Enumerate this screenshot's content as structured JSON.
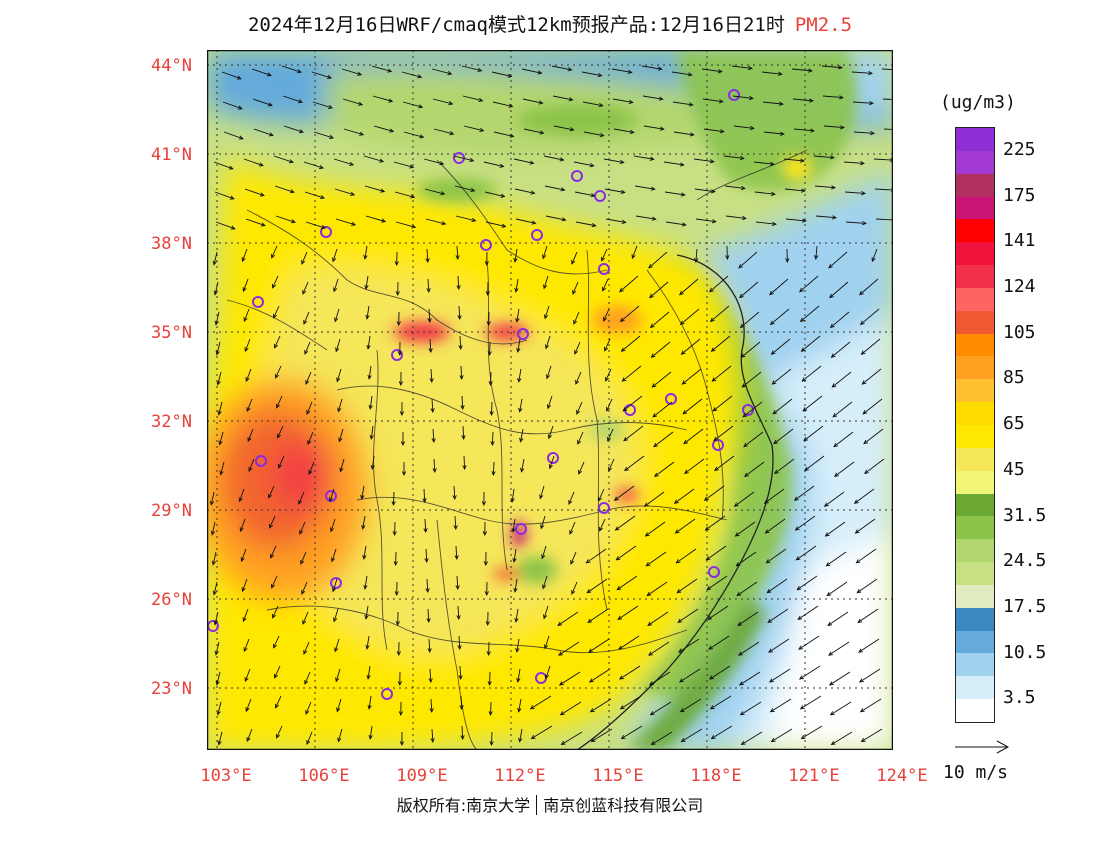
{
  "header": {
    "title": "2024年12月16日WRF/cmaq模式12km预报产品:12月16日21时",
    "pollutant": "PM2.5"
  },
  "map": {
    "lat_labels": [
      "44°N",
      "41°N",
      "38°N",
      "35°N",
      "32°N",
      "29°N",
      "26°N",
      "23°N"
    ],
    "lon_labels": [
      "103°E",
      "106°E",
      "109°E",
      "112°E",
      "115°E",
      "118°E",
      "121°E",
      "124°E"
    ],
    "colors": {
      "label": "#e8413a",
      "station_marker": "#8a2be2",
      "grid": "#333333"
    }
  },
  "legend": {
    "unit": "(ug/m3)",
    "levels": [
      {
        "label": "225",
        "color": "#8f2fd6"
      },
      {
        "label": "",
        "color": "#a33bd2"
      },
      {
        "label": "175",
        "color": "#b03060"
      },
      {
        "label": "",
        "color": "#cc1477"
      },
      {
        "label": "141",
        "color": "#ff0000"
      },
      {
        "label": "",
        "color": "#f0143c"
      },
      {
        "label": "124",
        "color": "#f2304a"
      },
      {
        "label": "",
        "color": "#ff6464"
      },
      {
        "label": "105",
        "color": "#f05a32"
      },
      {
        "label": "",
        "color": "#ff8c00"
      },
      {
        "label": "85",
        "color": "#ffa020"
      },
      {
        "label": "",
        "color": "#ffc030"
      },
      {
        "label": "65",
        "color": "#ffdc00"
      },
      {
        "label": "",
        "color": "#ffe800"
      },
      {
        "label": "45",
        "color": "#f5e65a"
      },
      {
        "label": "",
        "color": "#f0f575"
      },
      {
        "label": "31.5",
        "color": "#6aa832"
      },
      {
        "label": "",
        "color": "#8cc44a"
      },
      {
        "label": "24.5",
        "color": "#b4d66e"
      },
      {
        "label": "",
        "color": "#c8e084"
      },
      {
        "label": "17.5",
        "color": "#e0ecc0"
      },
      {
        "label": "",
        "color": "#3c87c0"
      },
      {
        "label": "10.5",
        "color": "#64aadc"
      },
      {
        "label": "",
        "color": "#a0d2f0"
      },
      {
        "label": "3.5",
        "color": "#d6eefa"
      },
      {
        "label": "",
        "color": "#ffffff"
      }
    ]
  },
  "wind_reference": {
    "label": "10 m/s"
  },
  "footer": {
    "copyright_left": "版权所有:南京大学",
    "copyright_right": "南京创蓝科技有限公司"
  }
}
